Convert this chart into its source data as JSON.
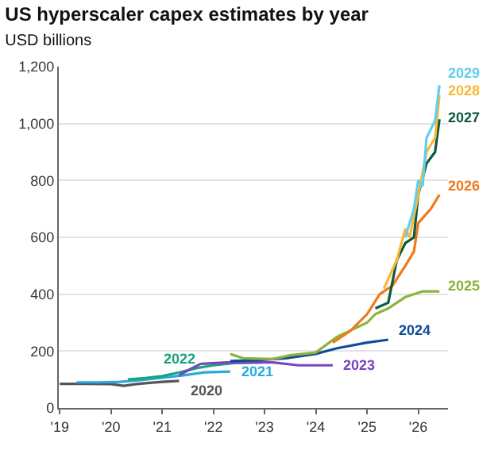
{
  "chart_data": {
    "type": "line",
    "title": "US hyperscaler capex estimates by year",
    "subtitle": "USD billions",
    "xlim": [
      "2018-12-25",
      "2026-08-01"
    ],
    "ylim": [
      0,
      1200
    ],
    "xticks": [
      {
        "value": "2019-01-01",
        "label": "'19"
      },
      {
        "value": "2020-01-01",
        "label": "'20"
      },
      {
        "value": "2021-01-01",
        "label": "'21"
      },
      {
        "value": "2022-01-01",
        "label": "'22"
      },
      {
        "value": "2023-01-01",
        "label": "'23"
      },
      {
        "value": "2024-01-01",
        "label": "'24"
      },
      {
        "value": "2025-01-01",
        "label": "'25"
      },
      {
        "value": "2026-01-01",
        "label": "'26"
      }
    ],
    "yticks": [
      0,
      200,
      400,
      600,
      800,
      {
        "value": 1000,
        "label": "1,000"
      },
      {
        "value": 1200,
        "label": "1,200"
      }
    ],
    "grid": "y",
    "legend": false,
    "marker": "none",
    "line_style": "solid",
    "series": [
      {
        "name": "2020",
        "color": "#555555",
        "x": [
          "2019-01",
          "2019-07",
          "2020-01",
          "2020-04",
          "2020-07",
          "2020-10",
          "2021-01",
          "2021-05"
        ],
        "values": [
          85,
          85,
          84,
          78,
          84,
          88,
          92,
          95
        ]
      },
      {
        "name": "2021",
        "color": "#29a9e0",
        "x": [
          "2019-05",
          "2019-10",
          "2020-03",
          "2020-08",
          "2021-01",
          "2021-06",
          "2021-11",
          "2022-05"
        ],
        "values": [
          90,
          90,
          92,
          98,
          106,
          115,
          125,
          128
        ]
      },
      {
        "name": "2022",
        "color": "#1aa37a",
        "x": [
          "2020-05",
          "2020-09",
          "2021-01",
          "2021-05",
          "2021-09",
          "2022-01",
          "2022-06",
          "2022-12"
        ],
        "values": [
          100,
          105,
          112,
          125,
          140,
          150,
          158,
          160
        ]
      },
      {
        "name": "2023",
        "color": "#7b45c0",
        "x": [
          "2021-05",
          "2021-08",
          "2021-10",
          "2022-04",
          "2022-10",
          "2023-03",
          "2023-09",
          "2024-05"
        ],
        "values": [
          115,
          140,
          155,
          160,
          160,
          160,
          150,
          150
        ]
      },
      {
        "name": "2024",
        "color": "#0f4c9a",
        "x": [
          "2022-05",
          "2022-11",
          "2023-06",
          "2024-01",
          "2024-06",
          "2025-01",
          "2025-06"
        ],
        "values": [
          165,
          168,
          175,
          190,
          210,
          230,
          240
        ]
      },
      {
        "name": "2025",
        "color": "#8cb33c",
        "x": [
          "2022-05",
          "2022-08",
          "2023-03",
          "2023-07",
          "2024-01",
          "2024-06",
          "2025-01",
          "2025-03",
          "2025-06",
          "2025-10",
          "2026-02",
          "2026-06"
        ],
        "values": [
          190,
          175,
          172,
          185,
          195,
          250,
          300,
          330,
          350,
          390,
          410,
          410
        ]
      },
      {
        "name": "2026",
        "color": "#f07a1a",
        "x": [
          "2024-05",
          "2024-09",
          "2025-01",
          "2025-04",
          "2025-07",
          "2025-10",
          "2025-12",
          "2026-01",
          "2026-04",
          "2026-06"
        ],
        "values": [
          230,
          270,
          330,
          400,
          430,
          500,
          550,
          650,
          700,
          750
        ]
      },
      {
        "name": "2027",
        "color": "#0d5a3c",
        "x": [
          "2025-03",
          "2025-06",
          "2025-08",
          "2025-10",
          "2025-12",
          "2026-01",
          "2026-03",
          "2026-05",
          "2026-06"
        ],
        "values": [
          350,
          370,
          520,
          580,
          600,
          750,
          860,
          900,
          1015
        ]
      },
      {
        "name": "2028",
        "color": "#fbb836",
        "x": [
          "2025-05",
          "2025-08",
          "2025-10",
          "2025-11",
          "2026-01",
          "2026-03",
          "2026-05",
          "2026-06"
        ],
        "values": [
          420,
          520,
          630,
          600,
          750,
          900,
          950,
          1100
        ]
      },
      {
        "name": "2029",
        "color": "#5fcfee",
        "x": [
          "2025-10",
          "2025-12",
          "2026-01",
          "2026-02",
          "2026-03",
          "2026-05",
          "2026-06"
        ],
        "values": [
          600,
          700,
          800,
          780,
          950,
          1010,
          1135
        ]
      }
    ]
  }
}
